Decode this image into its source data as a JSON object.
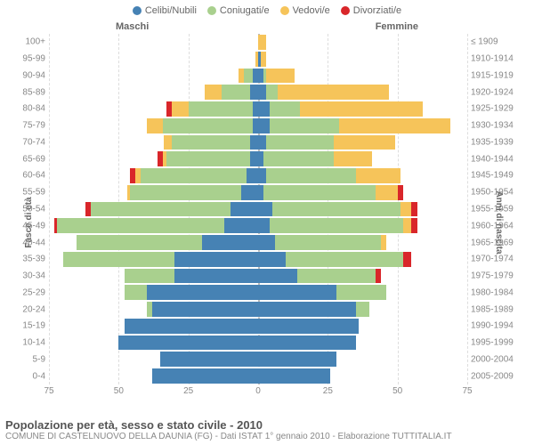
{
  "colors": {
    "celibi": "#4682b4",
    "coniugati": "#a9d08e",
    "vedovi": "#f6c45a",
    "divorziati": "#d9262a",
    "grid": "#dddddd",
    "center": "#bbbbbb",
    "text": "#666666",
    "background": "#ffffff"
  },
  "legend": [
    {
      "key": "celibi",
      "label": "Celibi/Nubili"
    },
    {
      "key": "coniugati",
      "label": "Coniugati/e"
    },
    {
      "key": "vedovi",
      "label": "Vedovi/e"
    },
    {
      "key": "divorziati",
      "label": "Divorziati/e"
    }
  ],
  "gender_m": "Maschi",
  "gender_f": "Femmine",
  "axis_left_title": "Fasce di età",
  "axis_right_title": "Anni di nascita",
  "x_ticks": [
    75,
    50,
    25,
    0,
    25,
    50,
    75
  ],
  "x_max": 75,
  "footer_title": "Popolazione per età, sesso e stato civile - 2010",
  "footer_sub": "COMUNE DI CASTELNUOVO DELLA DAUNIA (FG) - Dati ISTAT 1° gennaio 2010 - Elaborazione TUTTITALIA.IT",
  "rows": [
    {
      "age": "100+",
      "birth": "≤ 1909",
      "m": {
        "celibi": 0,
        "coniugati": 0,
        "vedovi": 0,
        "divorziati": 0
      },
      "f": {
        "celibi": 0,
        "coniugati": 0,
        "vedovi": 3,
        "divorziati": 0
      }
    },
    {
      "age": "95-99",
      "birth": "1910-1914",
      "m": {
        "celibi": 0,
        "coniugati": 0,
        "vedovi": 1,
        "divorziati": 0
      },
      "f": {
        "celibi": 1,
        "coniugati": 0,
        "vedovi": 2,
        "divorziati": 0
      }
    },
    {
      "age": "90-94",
      "birth": "1915-1919",
      "m": {
        "celibi": 2,
        "coniugati": 3,
        "vedovi": 2,
        "divorziati": 0
      },
      "f": {
        "celibi": 2,
        "coniugati": 1,
        "vedovi": 10,
        "divorziati": 0
      }
    },
    {
      "age": "85-89",
      "birth": "1920-1924",
      "m": {
        "celibi": 3,
        "coniugati": 10,
        "vedovi": 6,
        "divorziati": 0
      },
      "f": {
        "celibi": 3,
        "coniugati": 4,
        "vedovi": 40,
        "divorziati": 0
      }
    },
    {
      "age": "80-84",
      "birth": "1925-1929",
      "m": {
        "celibi": 2,
        "coniugati": 23,
        "vedovi": 6,
        "divorziati": 2
      },
      "f": {
        "celibi": 4,
        "coniugati": 11,
        "vedovi": 44,
        "divorziati": 0
      }
    },
    {
      "age": "75-79",
      "birth": "1930-1934",
      "m": {
        "celibi": 2,
        "coniugati": 32,
        "vedovi": 6,
        "divorziati": 0
      },
      "f": {
        "celibi": 4,
        "coniugati": 25,
        "vedovi": 40,
        "divorziati": 0
      }
    },
    {
      "age": "70-74",
      "birth": "1935-1939",
      "m": {
        "celibi": 3,
        "coniugati": 28,
        "vedovi": 3,
        "divorziati": 0
      },
      "f": {
        "celibi": 3,
        "coniugati": 24,
        "vedovi": 22,
        "divorziati": 0
      }
    },
    {
      "age": "65-69",
      "birth": "1940-1944",
      "m": {
        "celibi": 3,
        "coniugati": 30,
        "vedovi": 1,
        "divorziati": 2
      },
      "f": {
        "celibi": 2,
        "coniugati": 25,
        "vedovi": 14,
        "divorziati": 0
      }
    },
    {
      "age": "60-64",
      "birth": "1945-1949",
      "m": {
        "celibi": 4,
        "coniugati": 38,
        "vedovi": 2,
        "divorziati": 2
      },
      "f": {
        "celibi": 3,
        "coniugati": 32,
        "vedovi": 16,
        "divorziati": 0
      }
    },
    {
      "age": "55-59",
      "birth": "1950-1954",
      "m": {
        "celibi": 6,
        "coniugati": 40,
        "vedovi": 1,
        "divorziati": 0
      },
      "f": {
        "celibi": 2,
        "coniugati": 40,
        "vedovi": 8,
        "divorziati": 2
      }
    },
    {
      "age": "50-54",
      "birth": "1955-1959",
      "m": {
        "celibi": 10,
        "coniugati": 50,
        "vedovi": 0,
        "divorziati": 2
      },
      "f": {
        "celibi": 5,
        "coniugati": 46,
        "vedovi": 4,
        "divorziati": 2
      }
    },
    {
      "age": "45-49",
      "birth": "1960-1964",
      "m": {
        "celibi": 12,
        "coniugati": 60,
        "vedovi": 0,
        "divorziati": 1
      },
      "f": {
        "celibi": 4,
        "coniugati": 48,
        "vedovi": 3,
        "divorziati": 2
      }
    },
    {
      "age": "40-44",
      "birth": "1965-1969",
      "m": {
        "celibi": 20,
        "coniugati": 45,
        "vedovi": 0,
        "divorziati": 0
      },
      "f": {
        "celibi": 6,
        "coniugati": 38,
        "vedovi": 2,
        "divorziati": 0
      }
    },
    {
      "age": "35-39",
      "birth": "1970-1974",
      "m": {
        "celibi": 30,
        "coniugati": 40,
        "vedovi": 0,
        "divorziati": 0
      },
      "f": {
        "celibi": 10,
        "coniugati": 42,
        "vedovi": 0,
        "divorziati": 3
      }
    },
    {
      "age": "30-34",
      "birth": "1975-1979",
      "m": {
        "celibi": 30,
        "coniugati": 18,
        "vedovi": 0,
        "divorziati": 0
      },
      "f": {
        "celibi": 14,
        "coniugati": 28,
        "vedovi": 0,
        "divorziati": 2
      }
    },
    {
      "age": "25-29",
      "birth": "1980-1984",
      "m": {
        "celibi": 40,
        "coniugati": 8,
        "vedovi": 0,
        "divorziati": 0
      },
      "f": {
        "celibi": 28,
        "coniugati": 18,
        "vedovi": 0,
        "divorziati": 0
      }
    },
    {
      "age": "20-24",
      "birth": "1985-1989",
      "m": {
        "celibi": 38,
        "coniugati": 2,
        "vedovi": 0,
        "divorziati": 0
      },
      "f": {
        "celibi": 35,
        "coniugati": 5,
        "vedovi": 0,
        "divorziati": 0
      }
    },
    {
      "age": "15-19",
      "birth": "1990-1994",
      "m": {
        "celibi": 48,
        "coniugati": 0,
        "vedovi": 0,
        "divorziati": 0
      },
      "f": {
        "celibi": 36,
        "coniugati": 0,
        "vedovi": 0,
        "divorziati": 0
      }
    },
    {
      "age": "10-14",
      "birth": "1995-1999",
      "m": {
        "celibi": 50,
        "coniugati": 0,
        "vedovi": 0,
        "divorziati": 0
      },
      "f": {
        "celibi": 35,
        "coniugati": 0,
        "vedovi": 0,
        "divorziati": 0
      }
    },
    {
      "age": "5-9",
      "birth": "2000-2004",
      "m": {
        "celibi": 35,
        "coniugati": 0,
        "vedovi": 0,
        "divorziati": 0
      },
      "f": {
        "celibi": 28,
        "coniugati": 0,
        "vedovi": 0,
        "divorziati": 0
      }
    },
    {
      "age": "0-4",
      "birth": "2005-2009",
      "m": {
        "celibi": 38,
        "coniugati": 0,
        "vedovi": 0,
        "divorziati": 0
      },
      "f": {
        "celibi": 26,
        "coniugati": 0,
        "vedovi": 0,
        "divorziati": 0
      }
    }
  ]
}
